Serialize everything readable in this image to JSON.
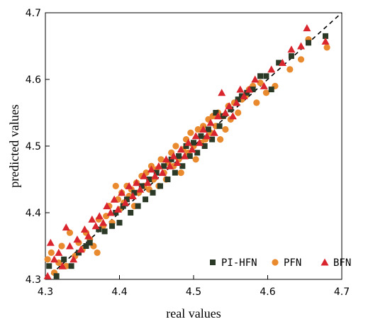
{
  "chart_data": {
    "type": "scatter",
    "title": "",
    "xlabel": "real values",
    "ylabel": "predicted values",
    "xlim": [
      4.3,
      4.7
    ],
    "ylim": [
      4.3,
      4.7
    ],
    "x_ticks": [
      "4.3",
      "4.4",
      "4.5",
      "4.6",
      "4.7"
    ],
    "y_ticks": [
      "4.3",
      "4.4",
      "4.5",
      "4.6",
      "4.7"
    ],
    "grid": false,
    "legend_position": "bottom-right",
    "reference_line": {
      "style": "dashed",
      "from": [
        4.3,
        4.3
      ],
      "to": [
        4.7,
        4.7
      ]
    },
    "series": [
      {
        "name": "PI-HFN",
        "marker": "square",
        "color": "#2b3a26",
        "points": [
          [
            4.305,
            4.32
          ],
          [
            4.315,
            4.305
          ],
          [
            4.325,
            4.33
          ],
          [
            4.335,
            4.32
          ],
          [
            4.345,
            4.34
          ],
          [
            4.355,
            4.35
          ],
          [
            4.36,
            4.355
          ],
          [
            4.372,
            4.375
          ],
          [
            4.38,
            4.372
          ],
          [
            4.39,
            4.38
          ],
          [
            4.395,
            4.4
          ],
          [
            4.4,
            4.385
          ],
          [
            4.405,
            4.41
          ],
          [
            4.41,
            4.42
          ],
          [
            4.415,
            4.4
          ],
          [
            4.42,
            4.43
          ],
          [
            4.425,
            4.41
          ],
          [
            4.43,
            4.44
          ],
          [
            4.435,
            4.42
          ],
          [
            4.44,
            4.45
          ],
          [
            4.445,
            4.43
          ],
          [
            4.45,
            4.46
          ],
          [
            4.455,
            4.44
          ],
          [
            4.46,
            4.47
          ],
          [
            4.465,
            4.45
          ],
          [
            4.47,
            4.48
          ],
          [
            4.475,
            4.46
          ],
          [
            4.48,
            4.485
          ],
          [
            4.485,
            4.47
          ],
          [
            4.49,
            4.5
          ],
          [
            4.495,
            4.485
          ],
          [
            4.5,
            4.505
          ],
          [
            4.505,
            4.49
          ],
          [
            4.51,
            4.515
          ],
          [
            4.515,
            4.5
          ],
          [
            4.52,
            4.525
          ],
          [
            4.525,
            4.51
          ],
          [
            4.53,
            4.55
          ],
          [
            4.535,
            4.53
          ],
          [
            4.54,
            4.545
          ],
          [
            4.55,
            4.555
          ],
          [
            4.56,
            4.57
          ],
          [
            4.565,
            4.575
          ],
          [
            4.572,
            4.58
          ],
          [
            4.58,
            4.585
          ],
          [
            4.59,
            4.605
          ],
          [
            4.598,
            4.605
          ],
          [
            4.605,
            4.585
          ],
          [
            4.615,
            4.625
          ],
          [
            4.632,
            4.635
          ],
          [
            4.655,
            4.655
          ],
          [
            4.678,
            4.665
          ]
        ]
      },
      {
        "name": "PFN",
        "marker": "circle",
        "color": "#ea8a2f",
        "points": [
          [
            4.303,
            4.33
          ],
          [
            4.308,
            4.34
          ],
          [
            4.312,
            4.31
          ],
          [
            4.318,
            4.325
          ],
          [
            4.322,
            4.35
          ],
          [
            4.328,
            4.32
          ],
          [
            4.333,
            4.37
          ],
          [
            4.34,
            4.335
          ],
          [
            4.345,
            4.355
          ],
          [
            4.35,
            4.345
          ],
          [
            4.355,
            4.37
          ],
          [
            4.36,
            4.36
          ],
          [
            4.365,
            4.35
          ],
          [
            4.37,
            4.34
          ],
          [
            4.372,
            4.39
          ],
          [
            4.378,
            4.38
          ],
          [
            4.382,
            4.395
          ],
          [
            4.386,
            4.41
          ],
          [
            4.39,
            4.385
          ],
          [
            4.395,
            4.44
          ],
          [
            4.398,
            4.42
          ],
          [
            4.4,
            4.405
          ],
          [
            4.403,
            4.43
          ],
          [
            4.406,
            4.415
          ],
          [
            4.41,
            4.44
          ],
          [
            4.413,
            4.425
          ],
          [
            4.416,
            4.435
          ],
          [
            4.42,
            4.41
          ],
          [
            4.423,
            4.445
          ],
          [
            4.426,
            4.43
          ],
          [
            4.43,
            4.455
          ],
          [
            4.433,
            4.44
          ],
          [
            4.436,
            4.46
          ],
          [
            4.44,
            4.435
          ],
          [
            4.443,
            4.47
          ],
          [
            4.446,
            4.45
          ],
          [
            4.45,
            4.465
          ],
          [
            4.453,
            4.44
          ],
          [
            4.456,
            4.48
          ],
          [
            4.46,
            4.46
          ],
          [
            4.463,
            4.45
          ],
          [
            4.466,
            4.475
          ],
          [
            4.47,
            4.49
          ],
          [
            4.473,
            4.47
          ],
          [
            4.476,
            4.5
          ],
          [
            4.48,
            4.48
          ],
          [
            4.483,
            4.46
          ],
          [
            4.486,
            4.495
          ],
          [
            4.49,
            4.51
          ],
          [
            4.493,
            4.49
          ],
          [
            4.496,
            4.52
          ],
          [
            4.5,
            4.5
          ],
          [
            4.503,
            4.48
          ],
          [
            4.506,
            4.525
          ],
          [
            4.51,
            4.505
          ],
          [
            4.513,
            4.53
          ],
          [
            4.516,
            4.51
          ],
          [
            4.52,
            4.54
          ],
          [
            4.523,
            4.52
          ],
          [
            4.526,
            4.545
          ],
          [
            4.53,
            4.53
          ],
          [
            4.533,
            4.55
          ],
          [
            4.536,
            4.51
          ],
          [
            4.54,
            4.545
          ],
          [
            4.543,
            4.525
          ],
          [
            4.547,
            4.56
          ],
          [
            4.55,
            4.54
          ],
          [
            4.555,
            4.565
          ],
          [
            4.56,
            4.55
          ],
          [
            4.565,
            4.57
          ],
          [
            4.57,
            4.575
          ],
          [
            4.575,
            4.585
          ],
          [
            4.58,
            4.59
          ],
          [
            4.585,
            4.565
          ],
          [
            4.59,
            4.595
          ],
          [
            4.598,
            4.58
          ],
          [
            4.61,
            4.59
          ],
          [
            4.63,
            4.615
          ],
          [
            4.645,
            4.63
          ],
          [
            4.655,
            4.66
          ],
          [
            4.68,
            4.648
          ]
        ]
      },
      {
        "name": "BFN",
        "marker": "triangle",
        "color": "#d9262e",
        "points": [
          [
            4.303,
            4.305
          ],
          [
            4.307,
            4.355
          ],
          [
            4.312,
            4.33
          ],
          [
            4.318,
            4.34
          ],
          [
            4.323,
            4.32
          ],
          [
            4.328,
            4.378
          ],
          [
            4.333,
            4.35
          ],
          [
            4.338,
            4.33
          ],
          [
            4.343,
            4.36
          ],
          [
            4.348,
            4.345
          ],
          [
            4.353,
            4.375
          ],
          [
            4.358,
            4.365
          ],
          [
            4.363,
            4.39
          ],
          [
            4.368,
            4.38
          ],
          [
            4.373,
            4.395
          ],
          [
            4.378,
            4.385
          ],
          [
            4.383,
            4.41
          ],
          [
            4.388,
            4.4
          ],
          [
            4.393,
            4.42
          ],
          [
            4.398,
            4.405
          ],
          [
            4.403,
            4.43
          ],
          [
            4.408,
            4.415
          ],
          [
            4.413,
            4.44
          ],
          [
            4.418,
            4.425
          ],
          [
            4.423,
            4.445
          ],
          [
            4.428,
            4.435
          ],
          [
            4.433,
            4.455
          ],
          [
            4.438,
            4.445
          ],
          [
            4.443,
            4.465
          ],
          [
            4.448,
            4.455
          ],
          [
            4.453,
            4.47
          ],
          [
            4.458,
            4.46
          ],
          [
            4.463,
            4.48
          ],
          [
            4.468,
            4.47
          ],
          [
            4.473,
            4.485
          ],
          [
            4.478,
            4.475
          ],
          [
            4.483,
            4.495
          ],
          [
            4.488,
            4.485
          ],
          [
            4.493,
            4.505
          ],
          [
            4.498,
            4.495
          ],
          [
            4.503,
            4.515
          ],
          [
            4.508,
            4.505
          ],
          [
            4.513,
            4.525
          ],
          [
            4.518,
            4.515
          ],
          [
            4.523,
            4.535
          ],
          [
            4.528,
            4.52
          ],
          [
            4.533,
            4.545
          ],
          [
            4.538,
            4.58
          ],
          [
            4.543,
            4.55
          ],
          [
            4.548,
            4.56
          ],
          [
            4.553,
            4.545
          ],
          [
            4.558,
            4.565
          ],
          [
            4.563,
            4.585
          ],
          [
            4.568,
            4.575
          ],
          [
            4.575,
            4.585
          ],
          [
            4.583,
            4.6
          ],
          [
            4.595,
            4.59
          ],
          [
            4.605,
            4.615
          ],
          [
            4.62,
            4.625
          ],
          [
            4.632,
            4.645
          ],
          [
            4.645,
            4.65
          ],
          [
            4.653,
            4.677
          ],
          [
            4.678,
            4.657
          ]
        ]
      }
    ]
  }
}
